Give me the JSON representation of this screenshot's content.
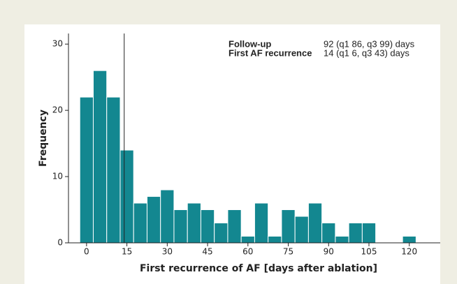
{
  "chart_data": {
    "type": "histogram",
    "bins": [
      -2.5,
      2.5,
      7.5,
      12.5,
      17.5,
      22.5,
      27.5,
      32.5,
      37.5,
      42.5,
      47.5,
      52.5,
      57.5,
      62.5,
      67.5,
      72.5,
      77.5,
      82.5,
      87.5,
      92.5,
      97.5,
      102.5,
      107.5,
      112.5,
      117.5,
      122.5
    ],
    "values": [
      22,
      26,
      22,
      14,
      6,
      7,
      8,
      5,
      6,
      5,
      3,
      5,
      1,
      6,
      1,
      5,
      4,
      6,
      3,
      1,
      3,
      3,
      0,
      0,
      1
    ],
    "color": "#138790",
    "xlabel": "First recurrence of AF [days after ablation]",
    "ylabel": "Frequency",
    "xlim": [
      -6.2,
      131.5
    ],
    "xticks": [
      0,
      15,
      30,
      45,
      60,
      75,
      90,
      105,
      120
    ],
    "ylim": [
      0,
      31.6
    ],
    "yticks": [
      0,
      10,
      20,
      30
    ],
    "vline": 14,
    "annotations": [
      {
        "label": "Follow-up",
        "text": "92 (q1 86, q3 99) days"
      },
      {
        "label": "First AF recurrence",
        "text": "14 (q1 6, q3 43) days"
      }
    ]
  }
}
